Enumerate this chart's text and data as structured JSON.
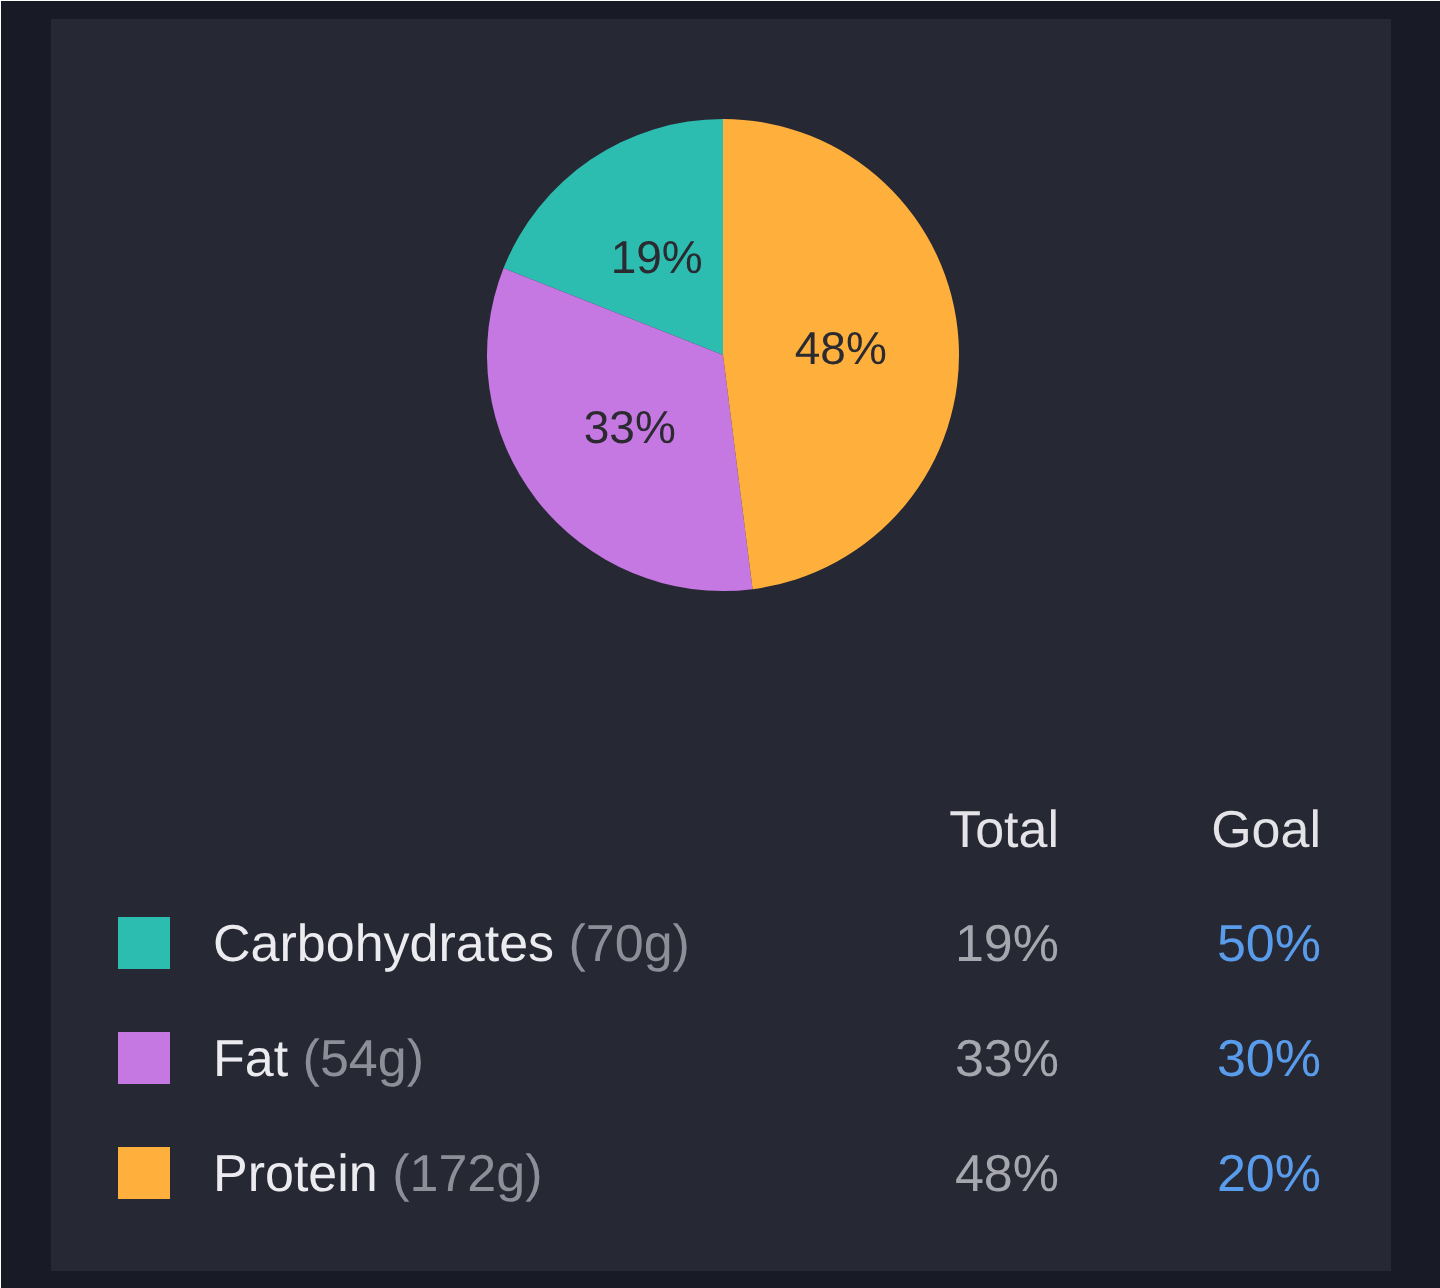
{
  "chart_data": {
    "type": "pie",
    "categories": [
      "Carbohydrates (70g)",
      "Fat (54g)",
      "Protein (172g)"
    ],
    "series": [
      {
        "name": "Total",
        "values": [
          19,
          33,
          48
        ],
        "value_labels": [
          "19%",
          "33%",
          "48%"
        ],
        "colors": [
          "#2dbdb0",
          "#c678e2",
          "#ffb03c"
        ]
      }
    ],
    "annotations": [
      "Goal",
      "50%",
      "30%",
      "20%"
    ],
    "legend": "bottom"
  }
}
